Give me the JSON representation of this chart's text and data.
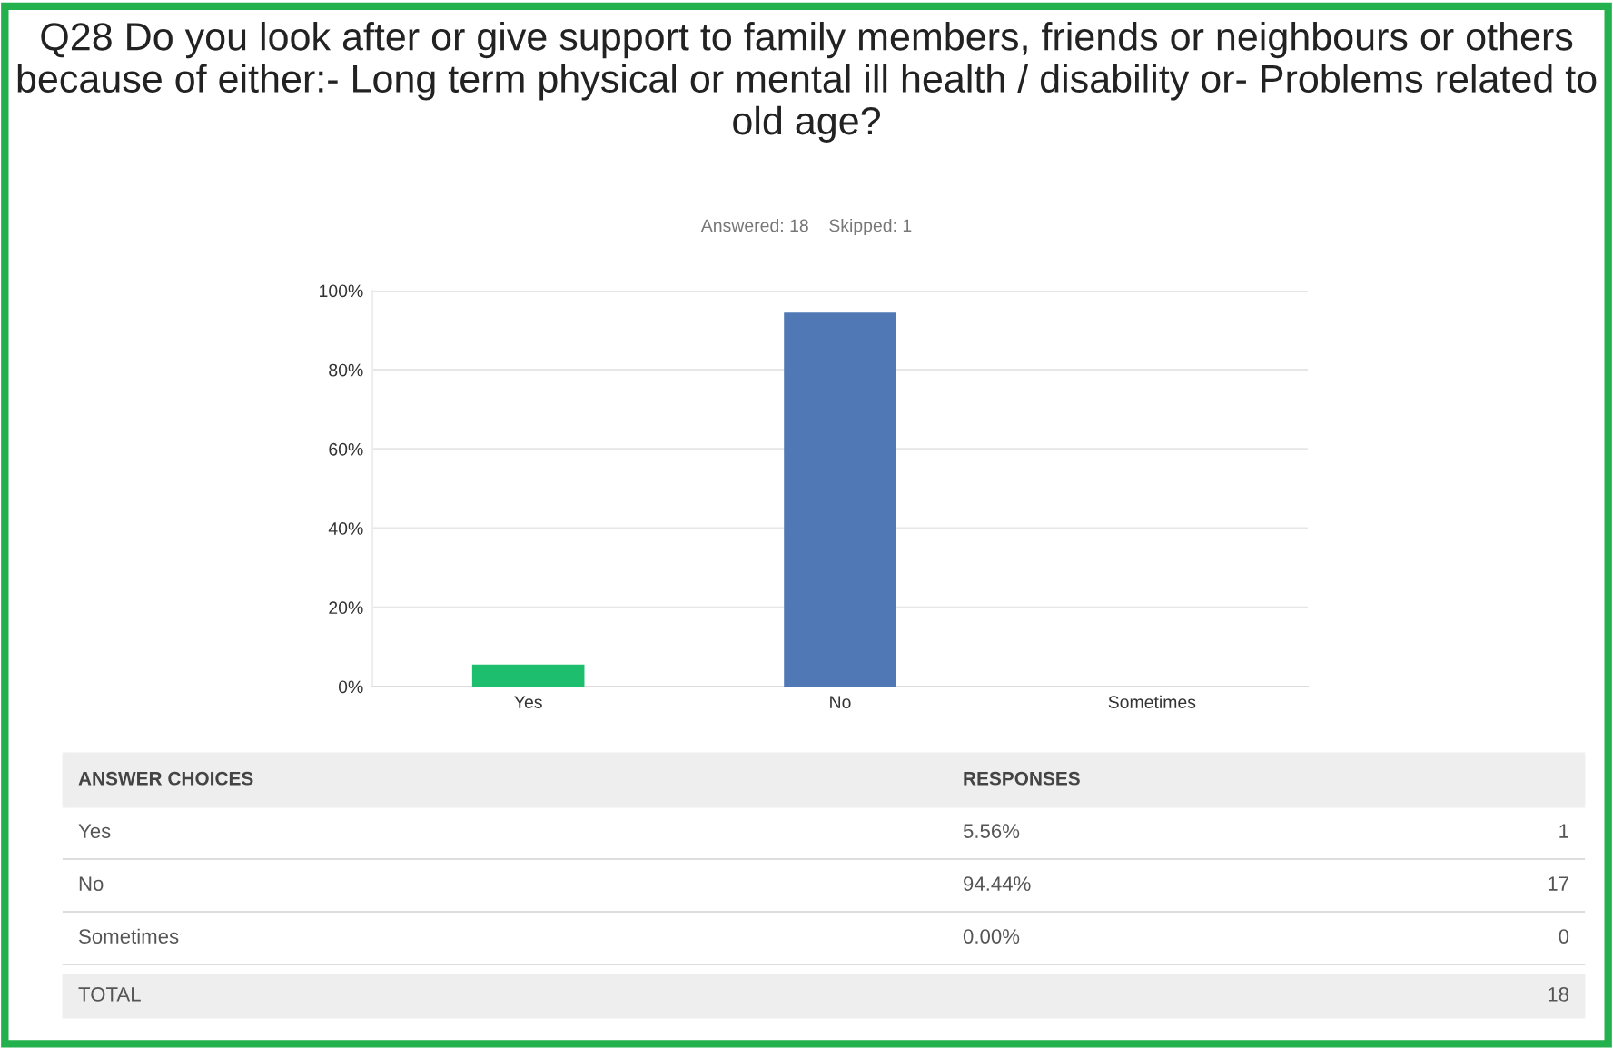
{
  "chart_data": {
    "type": "bar",
    "title": "Q28 Do you look after or give support to family members, friends or neighbours or others because of either:- Long term physical or mental ill health / disability or- Problems related to old age?",
    "subtitle": "Answered: 18    Skipped: 1",
    "categories": [
      "Yes",
      "No",
      "Sometimes"
    ],
    "values": [
      5.56,
      94.44,
      0.0
    ],
    "colors": [
      "#1dbf6e",
      "#4f78b5",
      "#a0a0a0"
    ],
    "ylim": [
      0,
      100
    ],
    "yticks": [
      {
        "value": 0,
        "label": "0%"
      },
      {
        "value": 20,
        "label": "20%"
      },
      {
        "value": 40,
        "label": "40%"
      },
      {
        "value": 60,
        "label": "60%"
      },
      {
        "value": 80,
        "label": "80%"
      },
      {
        "value": 100,
        "label": "100%"
      }
    ],
    "grid": "y",
    "annotations": [
      "ANSWER CHOICES",
      "RESPONSES",
      "5.56%",
      "1",
      "94.44%",
      "17",
      "0.00%",
      "0",
      "TOTAL",
      "18"
    ]
  }
}
